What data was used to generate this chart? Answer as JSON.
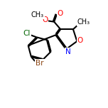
{
  "bg_color": "#ffffff",
  "bond_color": "#000000",
  "N_color": "#0000ff",
  "O_color": "#ff0000",
  "Br_color": "#8B4513",
  "Cl_color": "#006400",
  "figsize": [
    1.52,
    1.52
  ],
  "dpi": 100,
  "xlim": [
    0,
    10
  ],
  "ylim": [
    0,
    10
  ]
}
